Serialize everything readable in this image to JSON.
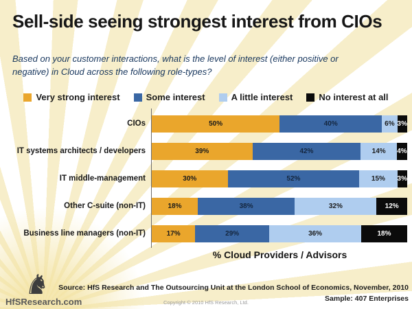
{
  "page": {
    "title": "Sell-side seeing strongest interest from CIOs",
    "subtitle": "Based on your customer interactions, what is the level of interest (either positive or negative) in Cloud across the following role-types?"
  },
  "colors": {
    "title": "#161616",
    "subtitle": "#17365D",
    "background_rays": "#F6ECC4"
  },
  "chart_data": {
    "type": "bar",
    "orientation": "horizontal",
    "stacked": true,
    "value_suffix": "%",
    "axis_range": [
      0,
      100
    ],
    "legend_position": "top",
    "categories": [
      "CIOs",
      "IT systems architects / developers",
      "IT middle-management",
      "Other C-suite (non-IT)",
      "Business line managers (non-IT)"
    ],
    "series": [
      {
        "name": "Very strong interest",
        "color": "#EAA62C",
        "label_color": "#1a1a1a",
        "values": [
          50,
          39,
          30,
          18,
          17
        ]
      },
      {
        "name": "Some interest",
        "color": "#3A67A4",
        "label_color": "#14263E",
        "values": [
          40,
          42,
          52,
          38,
          29
        ]
      },
      {
        "name": "A little interest",
        "color": "#AFCDEF",
        "label_color": "#1a1a1a",
        "values": [
          6,
          14,
          15,
          32,
          36
        ]
      },
      {
        "name": "No interest at all",
        "color": "#0B0B0B",
        "label_color": "#ffffff",
        "values": [
          3,
          4,
          3,
          12,
          18
        ]
      }
    ],
    "xlabel": "% Cloud Providers / Advisors"
  },
  "footer": {
    "logo_text": "HfSResearch.com",
    "horse_icon_glyph": "♞",
    "source_line": "Source:  HfS Research and  The Outsourcing Unit at the London School of Economics, November, 2010",
    "sample_line": "Sample:  407 Enterprises",
    "copyright": "Copyright © 2010 HfS Research, Ltd."
  }
}
